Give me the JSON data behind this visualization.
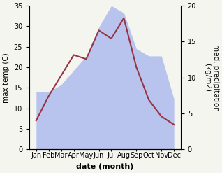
{
  "months": [
    "Jan",
    "Feb",
    "Mar",
    "Apr",
    "May",
    "Jun",
    "Jul",
    "Aug",
    "Sep",
    "Oct",
    "Nov",
    "Dec"
  ],
  "temperature": [
    7,
    13,
    18,
    23,
    22,
    29,
    27,
    32,
    20,
    12,
    8,
    6
  ],
  "precipitation": [
    8,
    8,
    9,
    11,
    13,
    17,
    20,
    19,
    14,
    13,
    13,
    7
  ],
  "temp_color": "#993344",
  "precip_color_fill": "#b8c4ed",
  "left_ylim": [
    0,
    35
  ],
  "right_ylim": [
    0,
    20
  ],
  "left_yticks": [
    0,
    5,
    10,
    15,
    20,
    25,
    30,
    35
  ],
  "right_yticks": [
    0,
    5,
    10,
    15,
    20
  ],
  "xlabel": "date (month)",
  "ylabel_left": "max temp (C)",
  "ylabel_right": "med. precipitation\n(kg/m2)",
  "temp_linewidth": 1.5,
  "label_fontsize": 7.5,
  "tick_fontsize": 7
}
